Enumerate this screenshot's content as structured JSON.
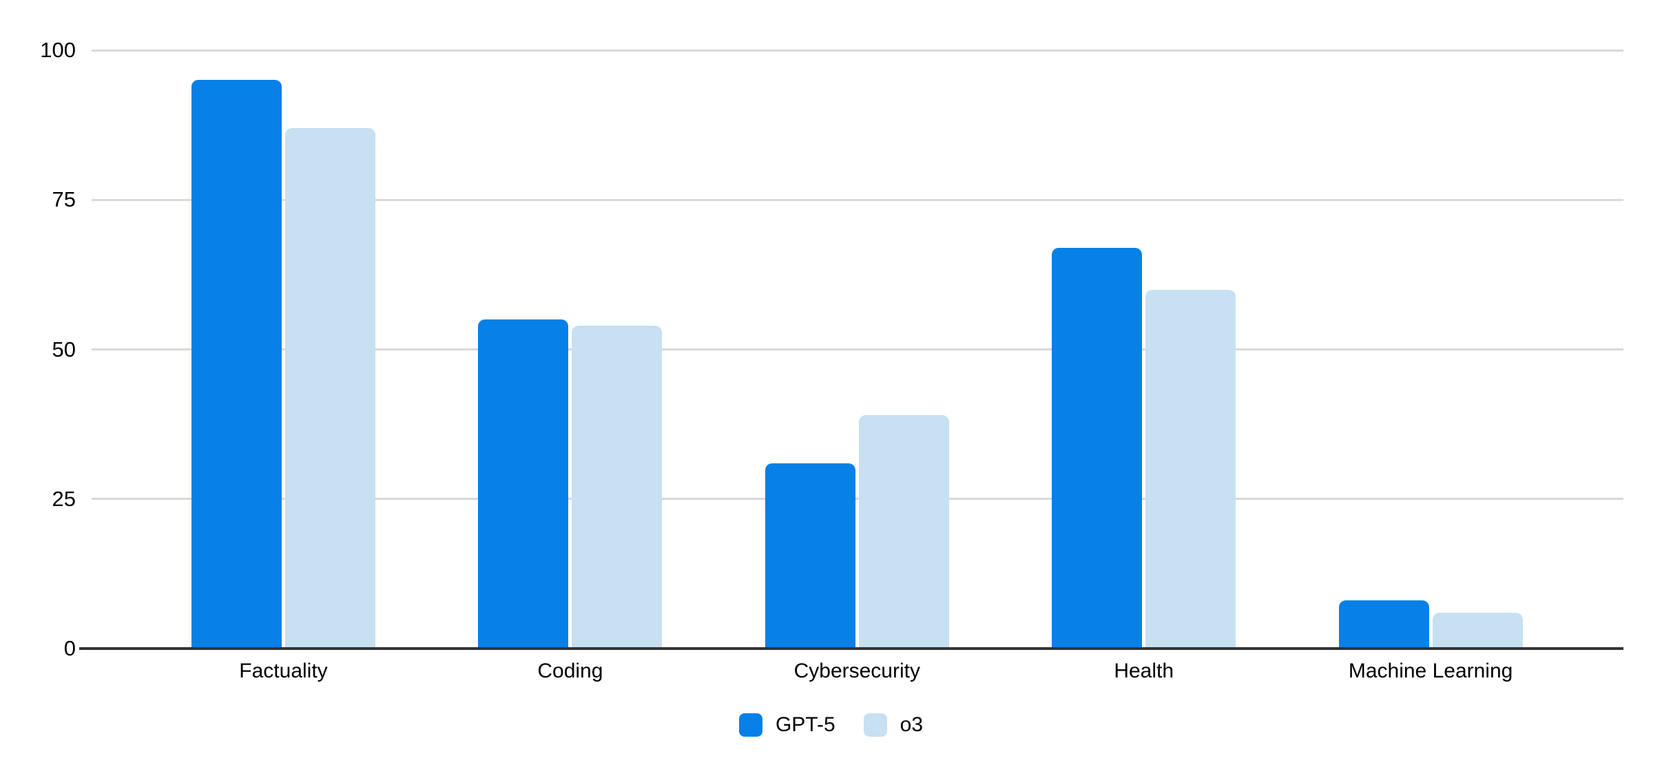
{
  "chart_data": {
    "type": "bar",
    "title": "",
    "categories": [
      "Factuality",
      "Coding",
      "Cybersecurity",
      "Health",
      "Machine Learning"
    ],
    "series": [
      {
        "name": "GPT-5",
        "color": "#0780e8",
        "values": [
          95,
          55,
          31,
          67,
          8
        ]
      },
      {
        "name": "o3",
        "color": "#c7e0f2",
        "values": [
          87,
          54,
          39,
          60,
          6
        ]
      }
    ],
    "ylim": [
      0,
      100
    ],
    "yticks": [
      0,
      25,
      50,
      75,
      100
    ],
    "grid": true,
    "legend_position": "bottom",
    "colors": {
      "gridline": "#d9d9d9",
      "axis": "#333333",
      "text": "#000000",
      "background": "#ffffff"
    }
  }
}
